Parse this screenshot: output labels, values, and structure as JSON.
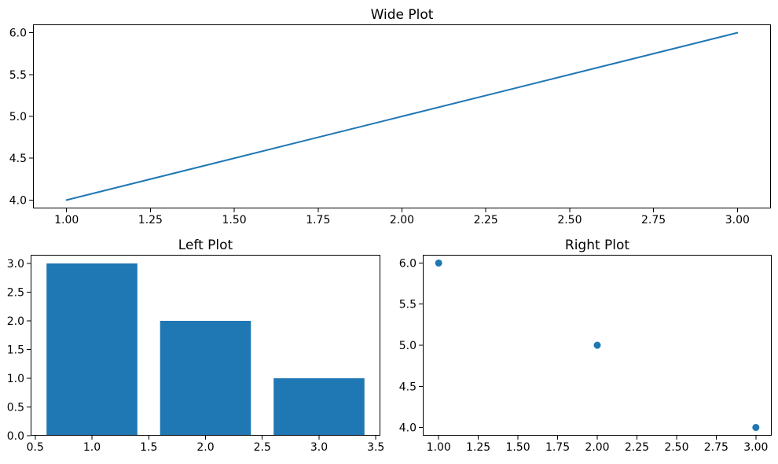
{
  "figure": {
    "background": "#ffffff",
    "accent_color": "#1f77b4",
    "spine_color": "#000000"
  },
  "chart_data": [
    {
      "type": "line",
      "title": "Wide Plot",
      "x": [
        1,
        2,
        3
      ],
      "y": [
        4,
        5,
        6
      ],
      "xlim": [
        0.9,
        3.1
      ],
      "ylim": [
        3.9,
        6.1
      ],
      "xticks": {
        "values": [
          1.0,
          1.25,
          1.5,
          1.75,
          2.0,
          2.25,
          2.5,
          2.75,
          3.0
        ],
        "labels": [
          "1.00",
          "1.25",
          "1.50",
          "1.75",
          "2.00",
          "2.25",
          "2.50",
          "2.75",
          "3.00"
        ]
      },
      "yticks": {
        "values": [
          4.0,
          4.5,
          5.0,
          5.5,
          6.0
        ],
        "labels": [
          "4.0",
          "4.5",
          "5.0",
          "5.5",
          "6.0"
        ]
      },
      "color": "#1f77b4",
      "line_width": 2,
      "grid": false,
      "legend": null
    },
    {
      "type": "bar",
      "title": "Left Plot",
      "x": [
        1,
        2,
        3
      ],
      "values": [
        3,
        2,
        1
      ],
      "bar_width": 0.8,
      "xlim": [
        0.46,
        3.54
      ],
      "ylim": [
        0,
        3.15
      ],
      "xticks": {
        "values": [
          0.5,
          1.0,
          1.5,
          2.0,
          2.5,
          3.0,
          3.5
        ],
        "labels": [
          "0.5",
          "1.0",
          "1.5",
          "2.0",
          "2.5",
          "3.0",
          "3.5"
        ]
      },
      "yticks": {
        "values": [
          0.0,
          0.5,
          1.0,
          1.5,
          2.0,
          2.5,
          3.0
        ],
        "labels": [
          "0.0",
          "0.5",
          "1.0",
          "1.5",
          "2.0",
          "2.5",
          "3.0"
        ]
      },
      "color": "#1f77b4",
      "grid": false,
      "legend": null
    },
    {
      "type": "scatter",
      "title": "Right Plot",
      "x": [
        1,
        2,
        3
      ],
      "y": [
        6,
        5,
        4
      ],
      "xlim": [
        0.9,
        3.1
      ],
      "ylim": [
        3.9,
        6.1
      ],
      "xticks": {
        "values": [
          1.0,
          1.25,
          1.5,
          1.75,
          2.0,
          2.25,
          2.5,
          2.75,
          3.0
        ],
        "labels": [
          "1.00",
          "1.25",
          "1.50",
          "1.75",
          "2.00",
          "2.25",
          "2.50",
          "2.75",
          "3.00"
        ]
      },
      "yticks": {
        "values": [
          4.0,
          4.5,
          5.0,
          5.5,
          6.0
        ],
        "labels": [
          "4.0",
          "4.5",
          "5.0",
          "5.5",
          "6.0"
        ]
      },
      "color": "#1f77b4",
      "marker_radius": 4.5,
      "grid": false,
      "legend": null
    }
  ]
}
